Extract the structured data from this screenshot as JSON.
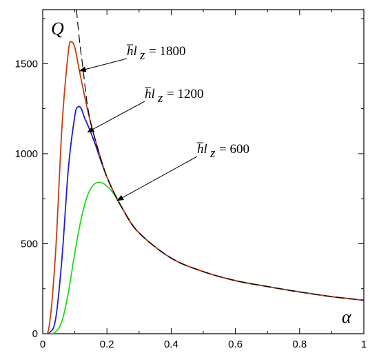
{
  "chart_data": {
    "type": "line",
    "xlabel": "α",
    "ylabel": "Q",
    "xlim": [
      0,
      1
    ],
    "ylim": [
      0,
      1800
    ],
    "x_ticks": [
      0,
      0.2,
      0.4,
      0.6,
      0.8,
      1
    ],
    "x_tick_labels": [
      "0",
      "0.2",
      "0.4",
      "0.6",
      "0.8",
      "1"
    ],
    "y_ticks": [
      0,
      500,
      1000,
      1500
    ],
    "y_tick_labels": [
      "0",
      "500",
      "1000",
      "1500"
    ],
    "grid": false,
    "series": [
      {
        "color": "#c83c10",
        "x": [
          0,
          0.02,
          0.04,
          0.06,
          0.08,
          0.09,
          0.1,
          0.11,
          0.12,
          0.14,
          0.16,
          0.2,
          0.25,
          0.3,
          0.4,
          0.5,
          0.6,
          0.7,
          0.8,
          0.9,
          1.0
        ],
        "y": [
          0,
          40,
          450,
          1150,
          1570,
          1620,
          1590,
          1500,
          1410,
          1240,
          1100,
          870,
          690,
          560,
          420,
          345,
          295,
          262,
          232,
          206,
          186
        ]
      },
      {
        "color": "#1c1cd8",
        "x": [
          0,
          0.02,
          0.04,
          0.06,
          0.08,
          0.1,
          0.11,
          0.12,
          0.13,
          0.14,
          0.16,
          0.2,
          0.25,
          0.3,
          0.4,
          0.5,
          0.6,
          0.7,
          0.8,
          0.9,
          1.0
        ],
        "y": [
          0,
          5,
          80,
          420,
          920,
          1210,
          1260,
          1250,
          1200,
          1160,
          1070,
          870,
          690,
          560,
          420,
          345,
          295,
          262,
          232,
          206,
          186
        ]
      },
      {
        "color": "#22d81a",
        "x": [
          0,
          0.02,
          0.04,
          0.06,
          0.08,
          0.1,
          0.12,
          0.14,
          0.16,
          0.18,
          0.2,
          0.22,
          0.25,
          0.3,
          0.4,
          0.5,
          0.6,
          0.7,
          0.8,
          0.9,
          1.0
        ],
        "y": [
          0,
          0,
          10,
          70,
          230,
          450,
          640,
          770,
          830,
          840,
          820,
          780,
          690,
          560,
          420,
          345,
          295,
          262,
          232,
          206,
          186
        ]
      },
      {
        "color": "#000000",
        "dashed": true,
        "x": [
          0.105,
          0.115,
          0.125,
          0.14,
          0.16,
          0.2,
          0.25,
          0.3,
          0.4,
          0.5,
          0.6,
          0.7,
          0.8,
          0.9,
          1.0
        ],
        "y": [
          1800,
          1620,
          1480,
          1260,
          1100,
          870,
          690,
          560,
          420,
          345,
          295,
          262,
          232,
          206,
          186
        ]
      }
    ],
    "annotations": [
      {
        "var": "hl",
        "sub": "z",
        "value": "1800",
        "text": "= 1800",
        "target": [
          0.115,
          1460
        ]
      },
      {
        "var": "hl",
        "sub": "z",
        "value": "1200",
        "text": "= 1200",
        "target": [
          0.14,
          1120
        ]
      },
      {
        "var": "hl",
        "sub": "z",
        "value": "600",
        "text": "= 600",
        "target": [
          0.232,
          740
        ]
      }
    ]
  }
}
